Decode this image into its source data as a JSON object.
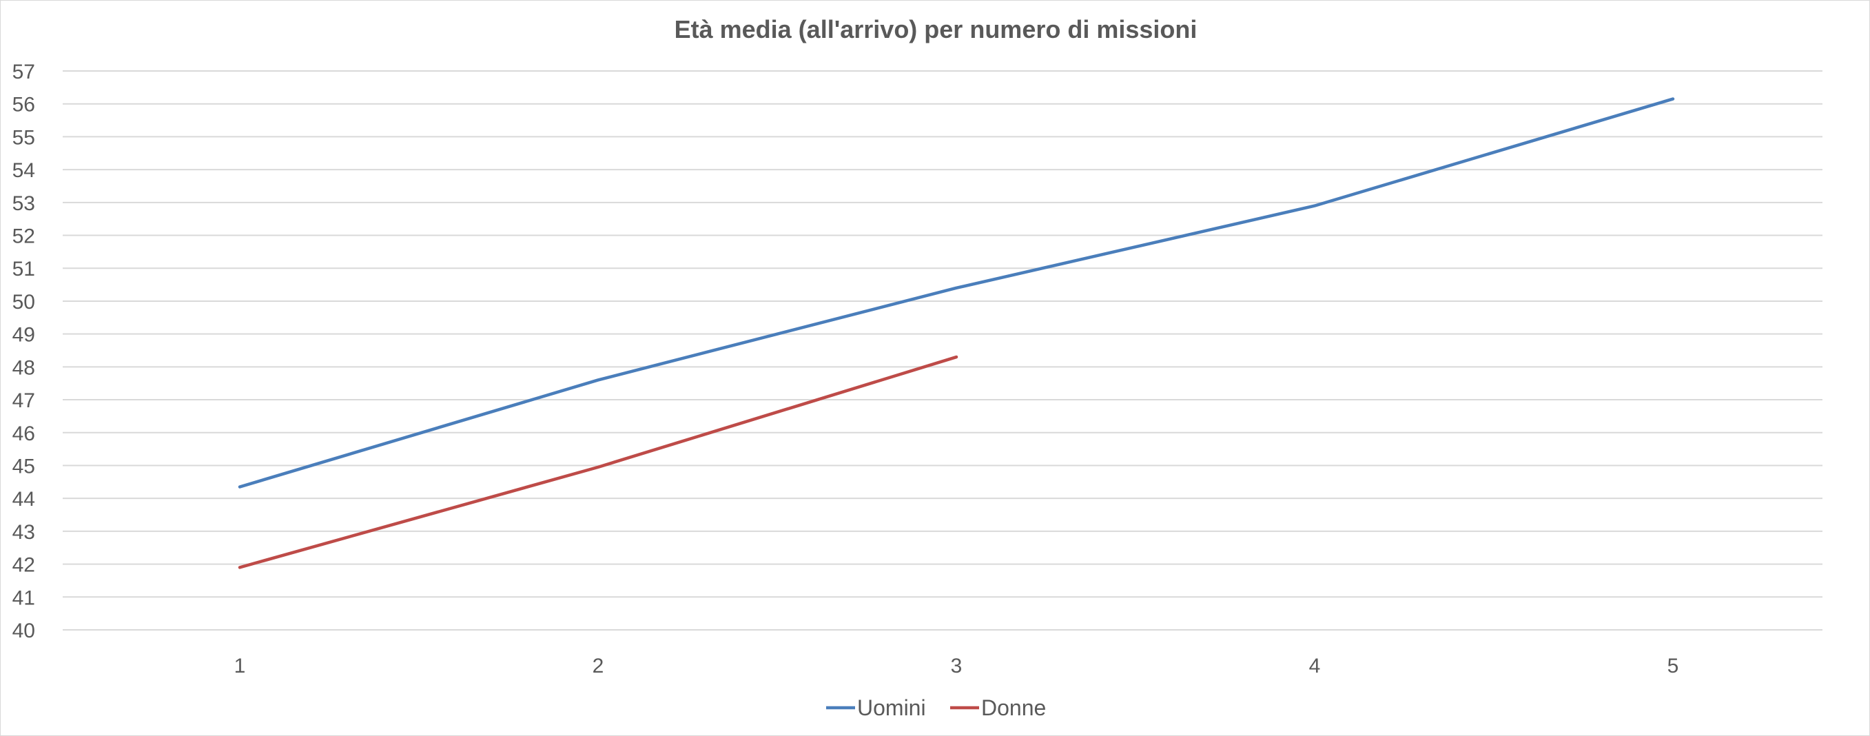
{
  "chart_data": {
    "type": "line",
    "title": "Età media (all'arrivo) per numero di missioni",
    "xlabel": "",
    "ylabel": "",
    "categories": [
      "1",
      "2",
      "3",
      "4",
      "5"
    ],
    "ylim": [
      40,
      57
    ],
    "ystep": 1,
    "grid": true,
    "legend_position": "bottom",
    "series": [
      {
        "name": "Uomini",
        "color": "#4a7ebb",
        "values": [
          44.35,
          47.6,
          50.4,
          52.9,
          56.15
        ]
      },
      {
        "name": "Donne",
        "color": "#be4b48",
        "values": [
          41.9,
          44.95,
          48.3,
          null,
          null
        ]
      }
    ]
  }
}
